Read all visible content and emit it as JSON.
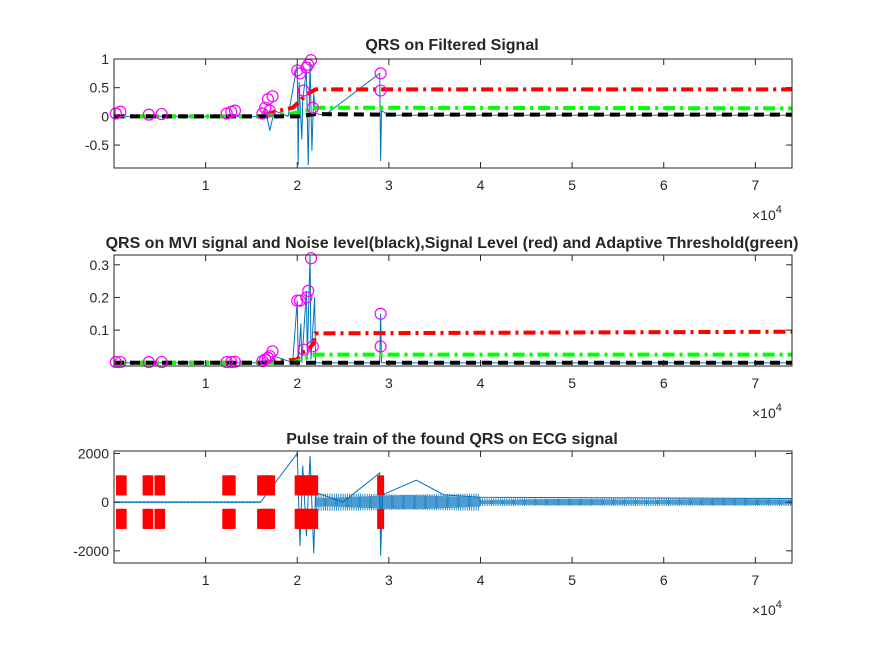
{
  "colors": {
    "signal": "#0072BD",
    "signal_level": "#FF0000",
    "noise_level": "#000000",
    "threshold": "#00FF00",
    "markers": "#FF00FF",
    "pulses": "#FF0000"
  },
  "chart_data": [
    {
      "type": "line",
      "title": "QRS on Filtered Signal",
      "xlabel": "",
      "ylabel": "",
      "xlim": [
        0,
        74000
      ],
      "ylim": [
        -0.9,
        1.0
      ],
      "x_ticks": [
        10000,
        20000,
        30000,
        40000,
        50000,
        60000,
        70000
      ],
      "x_tick_labels": [
        "1",
        "2",
        "3",
        "4",
        "5",
        "6",
        "7"
      ],
      "x_exponent_base": "×10",
      "x_exponent_power": "4",
      "y_ticks": [
        -0.5,
        0,
        0.5,
        1
      ],
      "y_tick_labels": [
        "-0.5",
        "0",
        "0.5",
        "1"
      ],
      "grid": false,
      "series": [
        {
          "style": "signal",
          "x": [
            0,
            16000,
            16500,
            17000,
            17500,
            19000,
            20000,
            20100,
            20200,
            20500,
            20600,
            21000,
            21200,
            21400,
            21600,
            21800,
            22000,
            23000,
            29000,
            29100,
            29200,
            30000,
            74000
          ],
          "y": [
            0,
            0,
            0.15,
            -0.25,
            0.1,
            0,
            0.9,
            -0.85,
            0.6,
            -0.4,
            0.3,
            0.8,
            -0.85,
            0.95,
            -0.6,
            0.4,
            0.05,
            0.02,
            0.75,
            -0.78,
            0.1,
            0.02,
            0.02
          ]
        },
        {
          "style": "signal_level",
          "x": [
            0,
            16000,
            17500,
            19500,
            20500,
            21000,
            22000,
            74000
          ],
          "y": [
            0,
            0,
            0.08,
            0.15,
            0.3,
            0.38,
            0.47,
            0.47
          ]
        },
        {
          "style": "threshold",
          "x": [
            0,
            16000,
            19500,
            21000,
            22000,
            30000,
            74000
          ],
          "y": [
            0,
            0,
            0.05,
            0.1,
            0.15,
            0.15,
            0.14
          ]
        },
        {
          "style": "noise_level",
          "x": [
            0,
            20000,
            22000,
            30000,
            74000
          ],
          "y": [
            0,
            0,
            0.04,
            0.03,
            0.03
          ]
        }
      ],
      "markers": {
        "x": [
          200,
          700,
          3800,
          5200,
          12300,
          12800,
          13200,
          16200,
          16500,
          16800,
          17000,
          17300,
          20000,
          20300,
          20700,
          21000,
          21200,
          21500,
          21700,
          29100,
          29100
        ],
        "y": [
          0.05,
          0.08,
          0.03,
          0.04,
          0.05,
          0.08,
          0.1,
          0.05,
          0.15,
          0.3,
          0.1,
          0.35,
          0.8,
          0.75,
          0.45,
          0.85,
          0.9,
          0.98,
          0.15,
          0.45,
          0.75
        ]
      }
    },
    {
      "type": "line",
      "title": "QRS on MVI signal and Noise level(black),Signal Level (red) and Adaptive Threshold(green)",
      "xlabel": "",
      "ylabel": "",
      "xlim": [
        0,
        74000
      ],
      "ylim": [
        -0.01,
        0.33
      ],
      "x_ticks": [
        10000,
        20000,
        30000,
        40000,
        50000,
        60000,
        70000
      ],
      "x_tick_labels": [
        "1",
        "2",
        "3",
        "4",
        "5",
        "6",
        "7"
      ],
      "x_exponent_base": "×10",
      "x_exponent_power": "4",
      "y_ticks": [
        0.1,
        0.2,
        0.3
      ],
      "y_tick_labels": [
        "0.1",
        "0.2",
        "0.3"
      ],
      "grid": false,
      "series": [
        {
          "style": "signal",
          "x": [
            0,
            16000,
            16500,
            17000,
            17500,
            19500,
            20000,
            20100,
            20400,
            20500,
            21000,
            21100,
            21400,
            21500,
            21900,
            22000,
            29000,
            29100,
            29200,
            74000
          ],
          "y": [
            0,
            0,
            0.02,
            0.005,
            0.02,
            0,
            0.19,
            0,
            0.12,
            0,
            0.22,
            0.02,
            0.33,
            0.01,
            0.2,
            0,
            0,
            0.15,
            0,
            0
          ]
        },
        {
          "style": "signal_level",
          "x": [
            0,
            16000,
            20000,
            20500,
            21200,
            21800,
            22000,
            74000
          ],
          "y": [
            0,
            0,
            0.01,
            0.03,
            0.04,
            0.06,
            0.09,
            0.095
          ]
        },
        {
          "style": "threshold",
          "x": [
            0,
            19500,
            21000,
            22000,
            74000
          ],
          "y": [
            0,
            0,
            0.015,
            0.025,
            0.025
          ]
        },
        {
          "style": "noise_level",
          "x": [
            0,
            74000
          ],
          "y": [
            0,
            0
          ]
        }
      ],
      "markers": {
        "x": [
          200,
          700,
          3800,
          5200,
          12300,
          12800,
          13200,
          16200,
          16500,
          16800,
          17000,
          17300,
          20000,
          20300,
          20700,
          21000,
          21200,
          21500,
          21700,
          29100,
          29100
        ],
        "y": [
          0.002,
          0.002,
          0.002,
          0.002,
          0.002,
          0.002,
          0.003,
          0.005,
          0.01,
          0.015,
          0.02,
          0.035,
          0.19,
          0.19,
          0.04,
          0.2,
          0.22,
          0.32,
          0.05,
          0.05,
          0.15
        ]
      }
    },
    {
      "type": "line",
      "title": "Pulse train of the found QRS on ECG signal",
      "xlabel": "",
      "ylabel": "",
      "xlim": [
        0,
        74000
      ],
      "ylim": [
        -2500,
        2100
      ],
      "x_ticks": [
        10000,
        20000,
        30000,
        40000,
        50000,
        60000,
        70000
      ],
      "x_tick_labels": [
        "1",
        "2",
        "3",
        "4",
        "5",
        "6",
        "7"
      ],
      "x_exponent_base": "×10",
      "x_exponent_power": "4",
      "y_ticks": [
        -2000,
        0,
        2000
      ],
      "y_tick_labels": [
        "-2000",
        "0",
        "2000"
      ],
      "grid": false,
      "series": [
        {
          "style": "signal",
          "note_envelope": "ecg",
          "x": [
            0,
            16000,
            20000,
            20300,
            20600,
            21000,
            21400,
            21800,
            22000,
            25000,
            29000,
            29100,
            29300,
            33000,
            36000,
            40000,
            74000
          ],
          "y": [
            0,
            0,
            2000,
            -1800,
            1500,
            -1400,
            1900,
            -2100,
            400,
            0,
            1200,
            -2200,
            300,
            900,
            300,
            200,
            150
          ]
        }
      ],
      "pulses": {
        "x": [
          600,
          1000,
          3500,
          3900,
          4800,
          5200,
          12200,
          12600,
          12900,
          16000,
          16300,
          16600,
          16900,
          17200,
          20100,
          20400,
          20700,
          21000,
          21300,
          21600,
          21900,
          29100
        ],
        "y_high": 1100,
        "y_low": -1100
      }
    }
  ]
}
